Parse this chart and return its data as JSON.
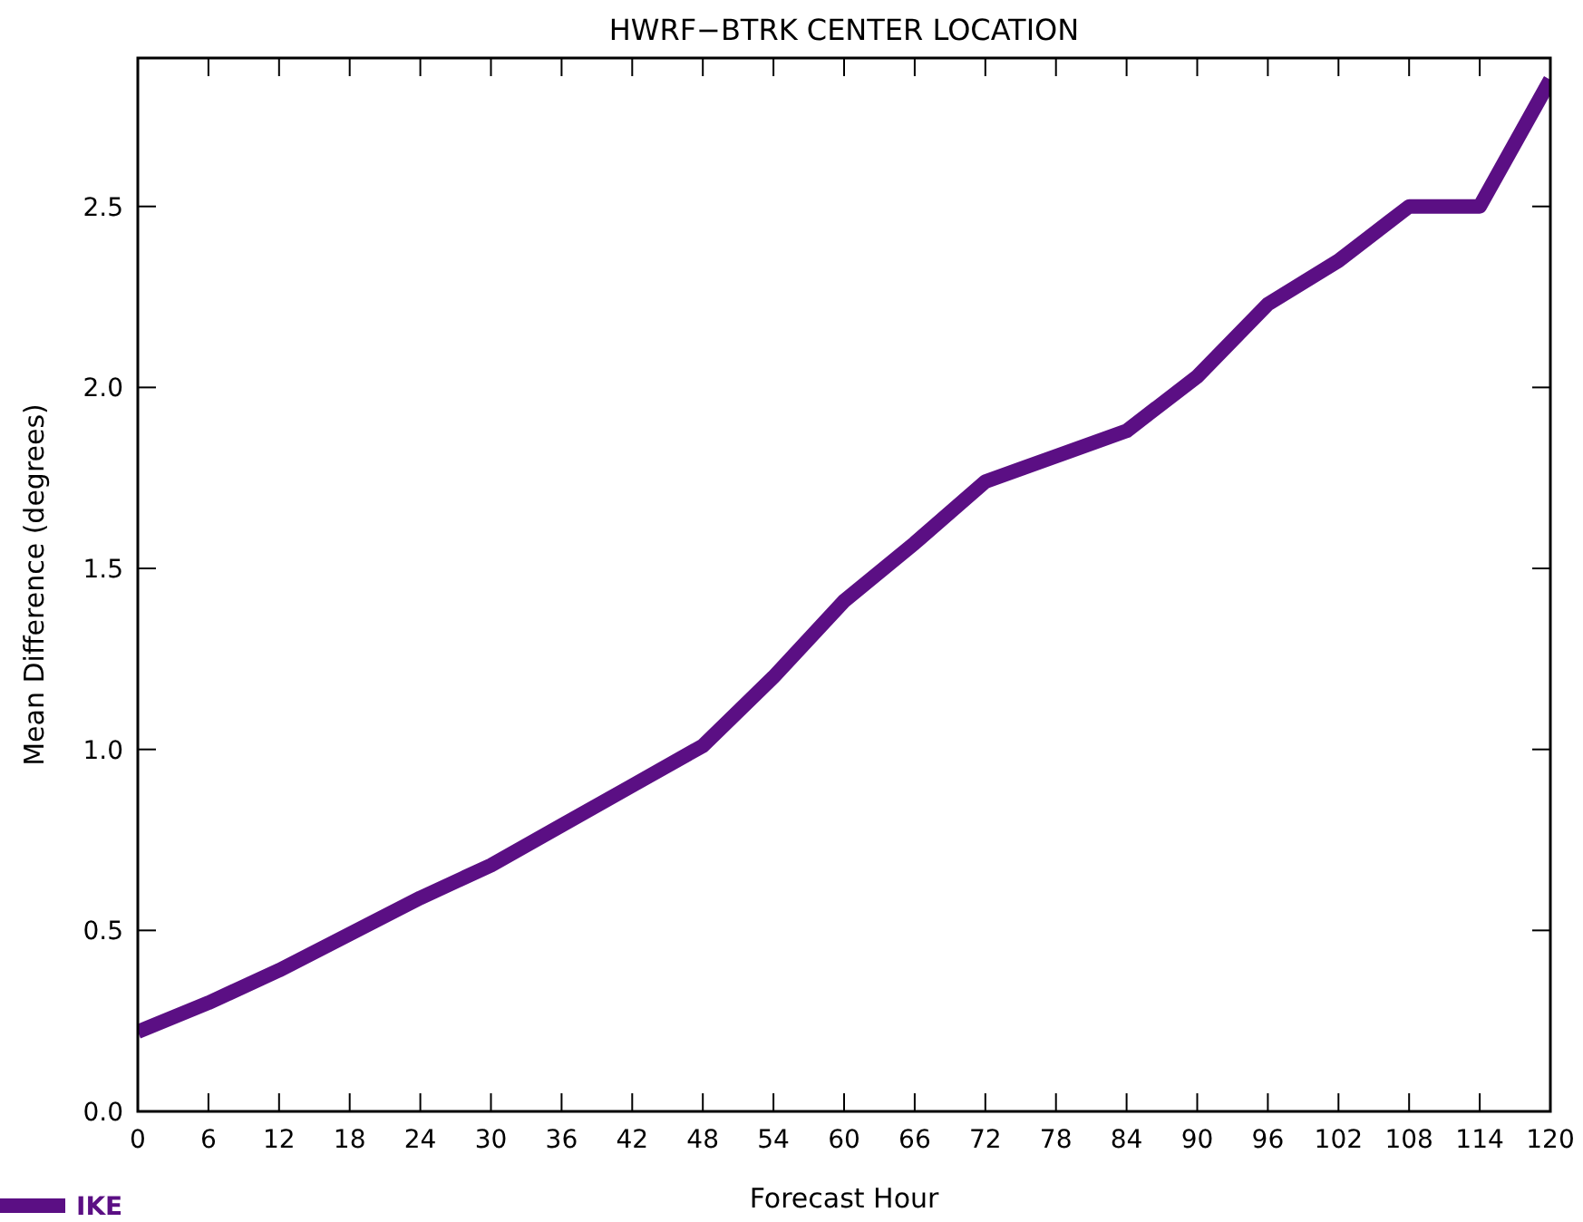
{
  "chart_data": {
    "type": "line",
    "title": "HWRF−BTRK CENTER LOCATION",
    "xlabel": "Forecast Hour",
    "ylabel": "Mean Difference (degrees)",
    "x": [
      0,
      6,
      12,
      18,
      24,
      30,
      36,
      42,
      48,
      54,
      60,
      66,
      72,
      78,
      84,
      90,
      96,
      102,
      108,
      114,
      120
    ],
    "series": [
      {
        "name": "IKE",
        "color": "#5b0f84",
        "values": [
          0.22,
          0.3,
          0.39,
          0.49,
          0.59,
          0.68,
          0.79,
          0.9,
          1.01,
          1.2,
          1.41,
          1.57,
          1.74,
          1.81,
          1.88,
          2.03,
          2.23,
          2.35,
          2.5,
          2.5,
          2.85
        ]
      }
    ],
    "xlim": [
      0,
      120
    ],
    "xticks": [
      0,
      6,
      12,
      18,
      24,
      30,
      36,
      42,
      48,
      54,
      60,
      66,
      72,
      78,
      84,
      90,
      96,
      102,
      108,
      114,
      120
    ],
    "ylim": [
      0,
      2.91
    ],
    "yticks": [
      {
        "value": 0,
        "label": "0.0"
      },
      0.5,
      {
        "value": 1,
        "label": "1.0"
      },
      1.5,
      {
        "value": 2,
        "label": "2.0"
      },
      2.5
    ],
    "grid": false,
    "legend": "bottom left",
    "marker": "none",
    "line_style": "solid"
  }
}
